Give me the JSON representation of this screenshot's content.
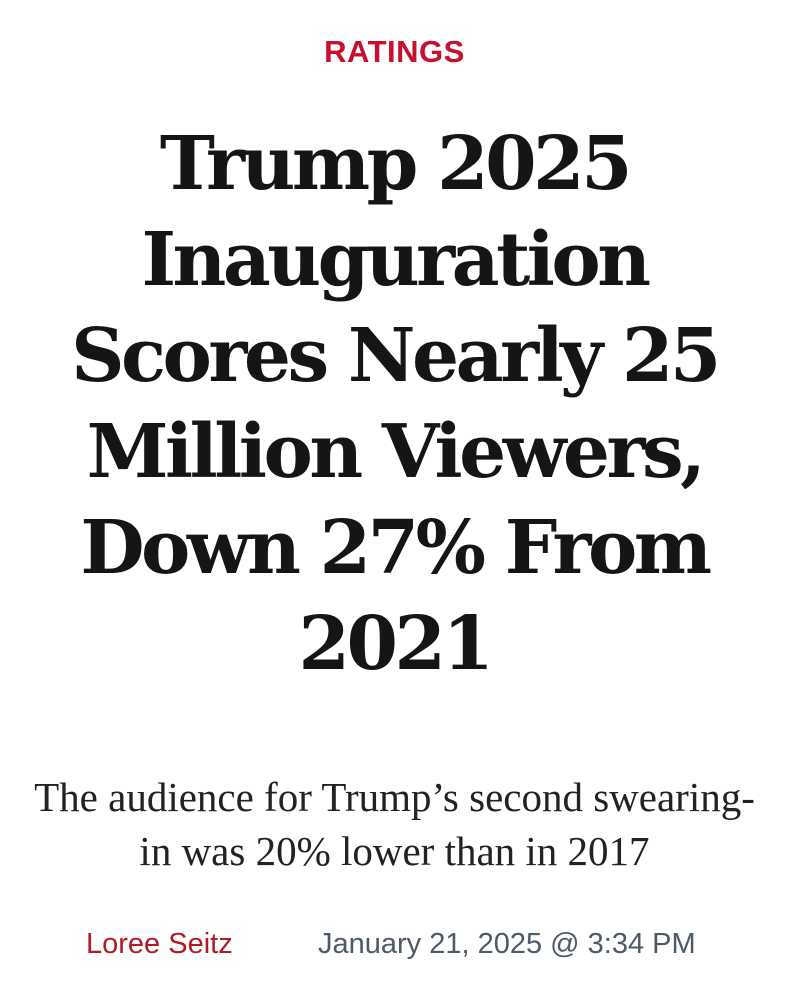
{
  "article": {
    "category": "RATINGS",
    "headline": "Trump 2025 Inauguration Scores Nearly 25 Million Viewers, Down 27% From 2021",
    "dek": "The audience for Trump’s second swearing-in was 20% lower than in 2017",
    "author": "Loree Seitz",
    "timestamp": "January 21, 2025 @ 3:34 PM"
  },
  "colors": {
    "category": "#c8102e",
    "author": "#b01c26",
    "headline": "#151515",
    "dek": "#222222",
    "timestamp": "#4e5a6a",
    "background": "#ffffff"
  }
}
